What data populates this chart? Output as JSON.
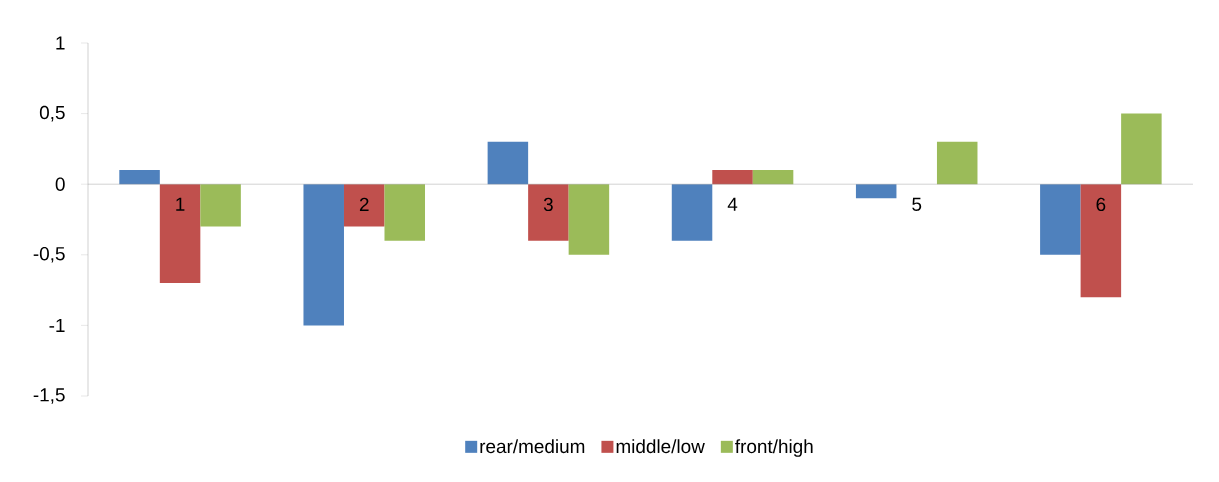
{
  "chart_data": {
    "type": "bar",
    "categories": [
      "1",
      "2",
      "3",
      "4",
      "5",
      "6"
    ],
    "series": [
      {
        "name": "rear/medium",
        "color": "#4f81bd",
        "values": [
          0.1,
          -1,
          0.3,
          -0.4,
          -0.1,
          -0.5
        ]
      },
      {
        "name": "middle/low",
        "color": "#c0504d",
        "values": [
          -0.7,
          -0.3,
          -0.4,
          0.1,
          0,
          -0.8
        ]
      },
      {
        "name": "front/high",
        "color": "#9bbb59",
        "values": [
          -0.3,
          -0.4,
          -0.5,
          0.1,
          0.3,
          0.5
        ]
      }
    ],
    "ylim": [
      -1.5,
      1
    ],
    "yticks": [
      {
        "value": -1.5,
        "label": "-1,5"
      },
      -1,
      {
        "value": -0.5,
        "label": "-0,5"
      },
      0,
      {
        "value": 0.5,
        "label": "0,5"
      },
      1
    ],
    "grid": false,
    "legend": "bottom"
  }
}
